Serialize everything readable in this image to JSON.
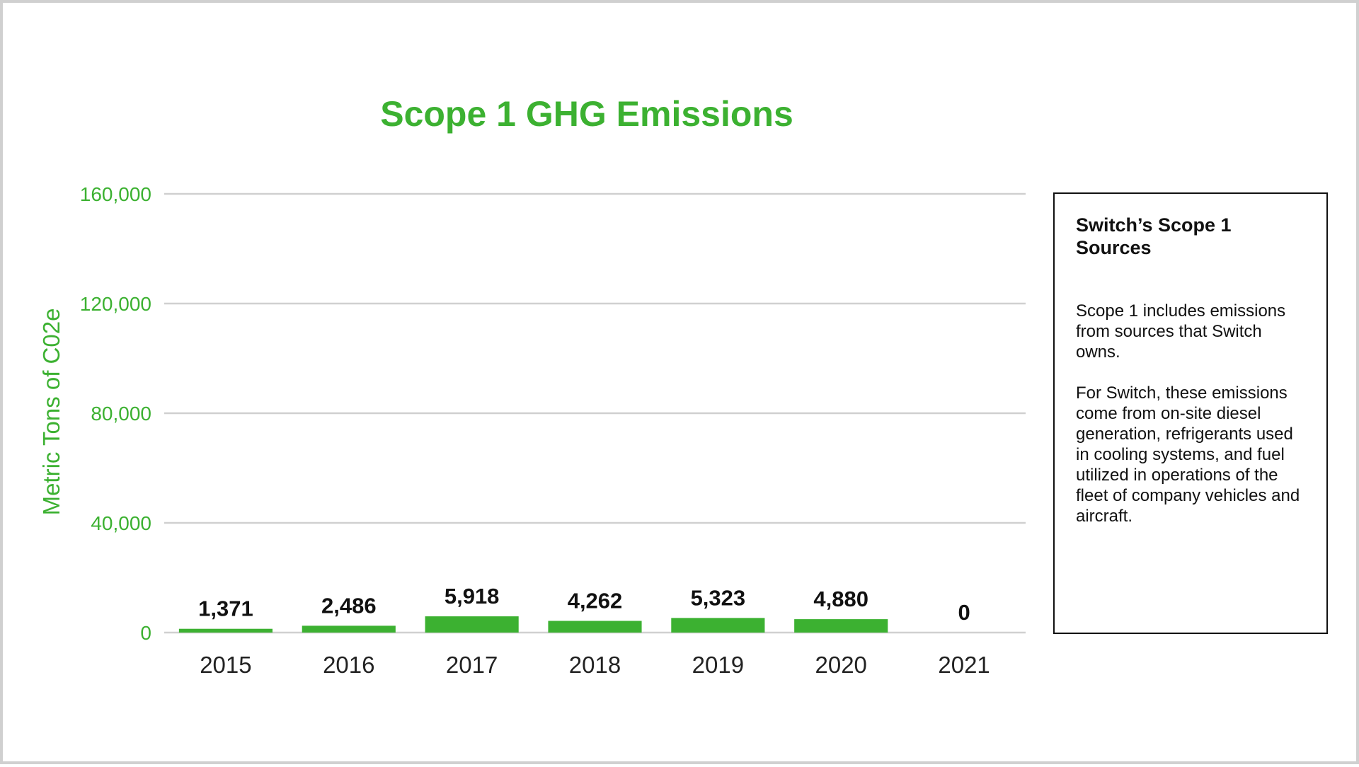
{
  "chart_data": {
    "type": "bar",
    "title": "Scope 1 GHG Emissions",
    "xlabel": "",
    "ylabel": "Metric Tons of C02e",
    "categories": [
      "2015",
      "2016",
      "2017",
      "2018",
      "2019",
      "2020",
      "2021"
    ],
    "values": [
      1371,
      2486,
      5918,
      4262,
      5323,
      4880,
      0
    ],
    "value_labels": [
      "1,371",
      "2,486",
      "5,918",
      "4,262",
      "5,323",
      "4,880",
      "0"
    ],
    "ylim": [
      0,
      160000
    ],
    "yticks": [
      0,
      40000,
      80000,
      120000,
      160000
    ],
    "ytick_labels": [
      "0",
      "40,000",
      "80,000",
      "120,000",
      "160,000"
    ],
    "grid": true,
    "legend": "none",
    "bar_color": "#3cb131",
    "text_color": "#3cb131"
  },
  "info_box": {
    "title": "Switch’s Scope 1 Sources",
    "paragraph_1": "Scope 1 includes emissions from sources that Switch owns.",
    "paragraph_2": "For Switch, these emissions come from on-site diesel generation, refrigerants used in cooling systems, and fuel utilized in operations of the fleet of company vehicles and aircraft."
  }
}
